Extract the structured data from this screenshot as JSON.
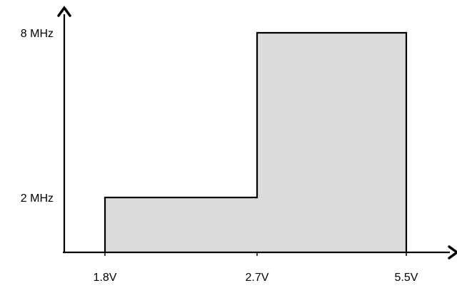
{
  "chart_data": {
    "type": "area",
    "title": "",
    "xlabel": "",
    "ylabel": "",
    "x_tick_labels": [
      "1.8V",
      "2.7V",
      "5.5V"
    ],
    "x_ticks": [
      1.8,
      2.7,
      5.5
    ],
    "y_tick_labels": [
      "2 MHz",
      "8 MHz"
    ],
    "y_ticks": [
      2,
      8
    ],
    "regions": [
      {
        "x_start": 1.8,
        "x_end": 2.7,
        "y": 2
      },
      {
        "x_start": 2.7,
        "x_end": 5.5,
        "y": 8
      }
    ],
    "x_unit": "V",
    "y_unit": "MHz",
    "grid": false,
    "legend": "none",
    "colors": {
      "fill": "#dcdcdc",
      "stroke": "#000000",
      "axis": "#000000"
    }
  }
}
